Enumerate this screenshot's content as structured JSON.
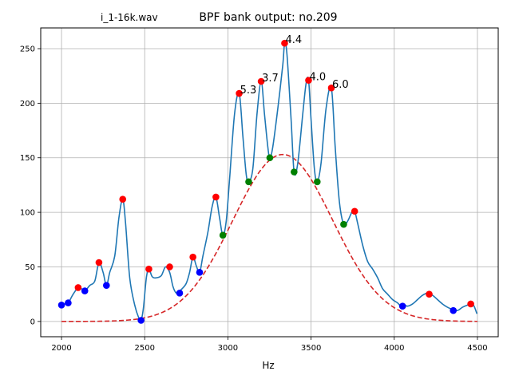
{
  "file_label": "i_1-16k.wav",
  "chart_data": {
    "type": "line",
    "title": "BPF bank output: no.209",
    "xlabel": "Hz",
    "ylabel": "",
    "xlim": [
      1875,
      4625
    ],
    "ylim": [
      -14,
      269
    ],
    "grid": true,
    "xticks": [
      2000,
      2500,
      3000,
      3500,
      4000,
      4500
    ],
    "yticks": [
      0,
      50,
      100,
      150,
      200,
      250
    ],
    "colors": {
      "line": "#1f77b4",
      "peak": "#ff0000",
      "valley": "#0000ff",
      "mid": "#008000",
      "fit": "#d62728"
    },
    "curve": {
      "x": [
        2000,
        2020,
        2040,
        2070,
        2100,
        2120,
        2140,
        2170,
        2200,
        2225,
        2250,
        2270,
        2290,
        2320,
        2345,
        2368,
        2385,
        2410,
        2440,
        2465,
        2478,
        2492,
        2510,
        2525,
        2545,
        2570,
        2600,
        2625,
        2650,
        2670,
        2690,
        2710,
        2725,
        2750,
        2770,
        2790,
        2810,
        2830,
        2850,
        2880,
        2905,
        2928,
        2950,
        2970,
        2990,
        3010,
        3040,
        3068,
        3090,
        3110,
        3125,
        3150,
        3175,
        3200,
        3220,
        3240,
        3252,
        3270,
        3300,
        3330,
        3341,
        3355,
        3380,
        3398,
        3420,
        3450,
        3470,
        3485,
        3500,
        3520,
        3537,
        3560,
        3590,
        3622,
        3645,
        3670,
        3696,
        3720,
        3745,
        3762,
        3780,
        3810,
        3840,
        3870,
        3900,
        3930,
        3960,
        3990,
        4020,
        4040,
        4060,
        4080,
        4110,
        4140,
        4170,
        4200,
        4230,
        4260,
        4290,
        4320,
        4350,
        4380,
        4410,
        4440,
        4465,
        4480,
        4497
      ],
      "y": [
        15,
        16,
        17,
        25,
        31,
        30,
        28,
        33,
        37,
        54,
        45,
        33,
        45,
        60,
        95,
        112,
        90,
        40,
        15,
        3,
        1,
        12,
        40,
        48,
        41,
        40,
        42,
        50,
        45,
        32,
        26,
        28,
        30,
        35,
        45,
        59,
        51,
        45,
        60,
        82,
        105,
        114,
        95,
        79,
        92,
        130,
        190,
        209,
        170,
        135,
        128,
        140,
        190,
        220,
        190,
        160,
        150,
        160,
        195,
        235,
        255,
        245,
        185,
        137,
        145,
        190,
        218,
        221,
        185,
        140,
        128,
        145,
        195,
        214,
        160,
        110,
        89,
        92,
        100,
        101,
        90,
        70,
        55,
        48,
        40,
        30,
        25,
        20,
        17,
        14,
        15,
        14,
        16,
        20,
        24,
        26,
        24,
        20,
        16,
        13,
        11,
        10,
        13,
        15,
        16,
        14,
        7
      ]
    },
    "fit": {
      "mean": 3330,
      "sigma": 300,
      "amplitude": 153,
      "x_range": [
        2000,
        4500
      ]
    },
    "peaks": [
      {
        "x": 2100,
        "y": 31
      },
      {
        "x": 2225,
        "y": 54
      },
      {
        "x": 2368,
        "y": 112
      },
      {
        "x": 2525,
        "y": 48
      },
      {
        "x": 2650,
        "y": 50
      },
      {
        "x": 2790,
        "y": 59
      },
      {
        "x": 2928,
        "y": 114
      },
      {
        "x": 3068,
        "y": 209
      },
      {
        "x": 3200,
        "y": 220
      },
      {
        "x": 3341,
        "y": 255
      },
      {
        "x": 3485,
        "y": 221
      },
      {
        "x": 3622,
        "y": 214
      },
      {
        "x": 3762,
        "y": 101
      },
      {
        "x": 4210,
        "y": 25
      },
      {
        "x": 4460,
        "y": 16
      }
    ],
    "valleys": [
      {
        "x": 2000,
        "y": 15
      },
      {
        "x": 2040,
        "y": 17
      },
      {
        "x": 2140,
        "y": 28
      },
      {
        "x": 2270,
        "y": 33
      },
      {
        "x": 2478,
        "y": 1
      },
      {
        "x": 2710,
        "y": 26
      },
      {
        "x": 2830,
        "y": 45
      },
      {
        "x": 4050,
        "y": 14
      },
      {
        "x": 4355,
        "y": 10
      }
    ],
    "mids": [
      {
        "x": 2970,
        "y": 79
      },
      {
        "x": 3125,
        "y": 128
      },
      {
        "x": 3252,
        "y": 150
      },
      {
        "x": 3398,
        "y": 137
      },
      {
        "x": 3537,
        "y": 128
      },
      {
        "x": 3696,
        "y": 89
      }
    ],
    "annotations": [
      {
        "text": "5.3",
        "x": 3068,
        "y": 209
      },
      {
        "text": "3.7",
        "x": 3200,
        "y": 220
      },
      {
        "text": "4.4",
        "x": 3341,
        "y": 255
      },
      {
        "text": "4.0",
        "x": 3485,
        "y": 221
      },
      {
        "text": "6.0",
        "x": 3622,
        "y": 214
      }
    ]
  }
}
